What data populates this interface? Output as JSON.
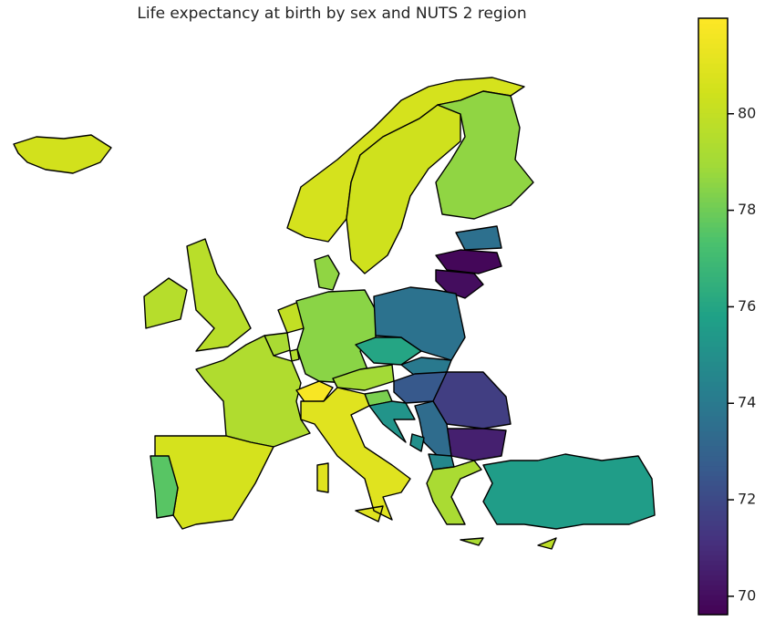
{
  "chart_data": {
    "type": "choropleth",
    "title": "Life expectancy at birth by sex and NUTS 2 region",
    "colormap": "viridis",
    "values": [
      80.5,
      80.6,
      80.4,
      78.6,
      73.6,
      69.8,
      70.0,
      79.6,
      79.7,
      78.6,
      80.0,
      79.2,
      79.5,
      79.4,
      78.5,
      81.8,
      79.0,
      76.0,
      73.7,
      74.0,
      72.6,
      71.6,
      70.6,
      78.2,
      75.2,
      73.4,
      75.0,
      74.6,
      79.2,
      81.0,
      80.6,
      77.6,
      75.6,
      79.8
    ],
    "clim": [
      69.62,
      81.98
    ],
    "cticks": [
      70,
      72,
      74,
      76,
      78,
      80
    ]
  }
}
